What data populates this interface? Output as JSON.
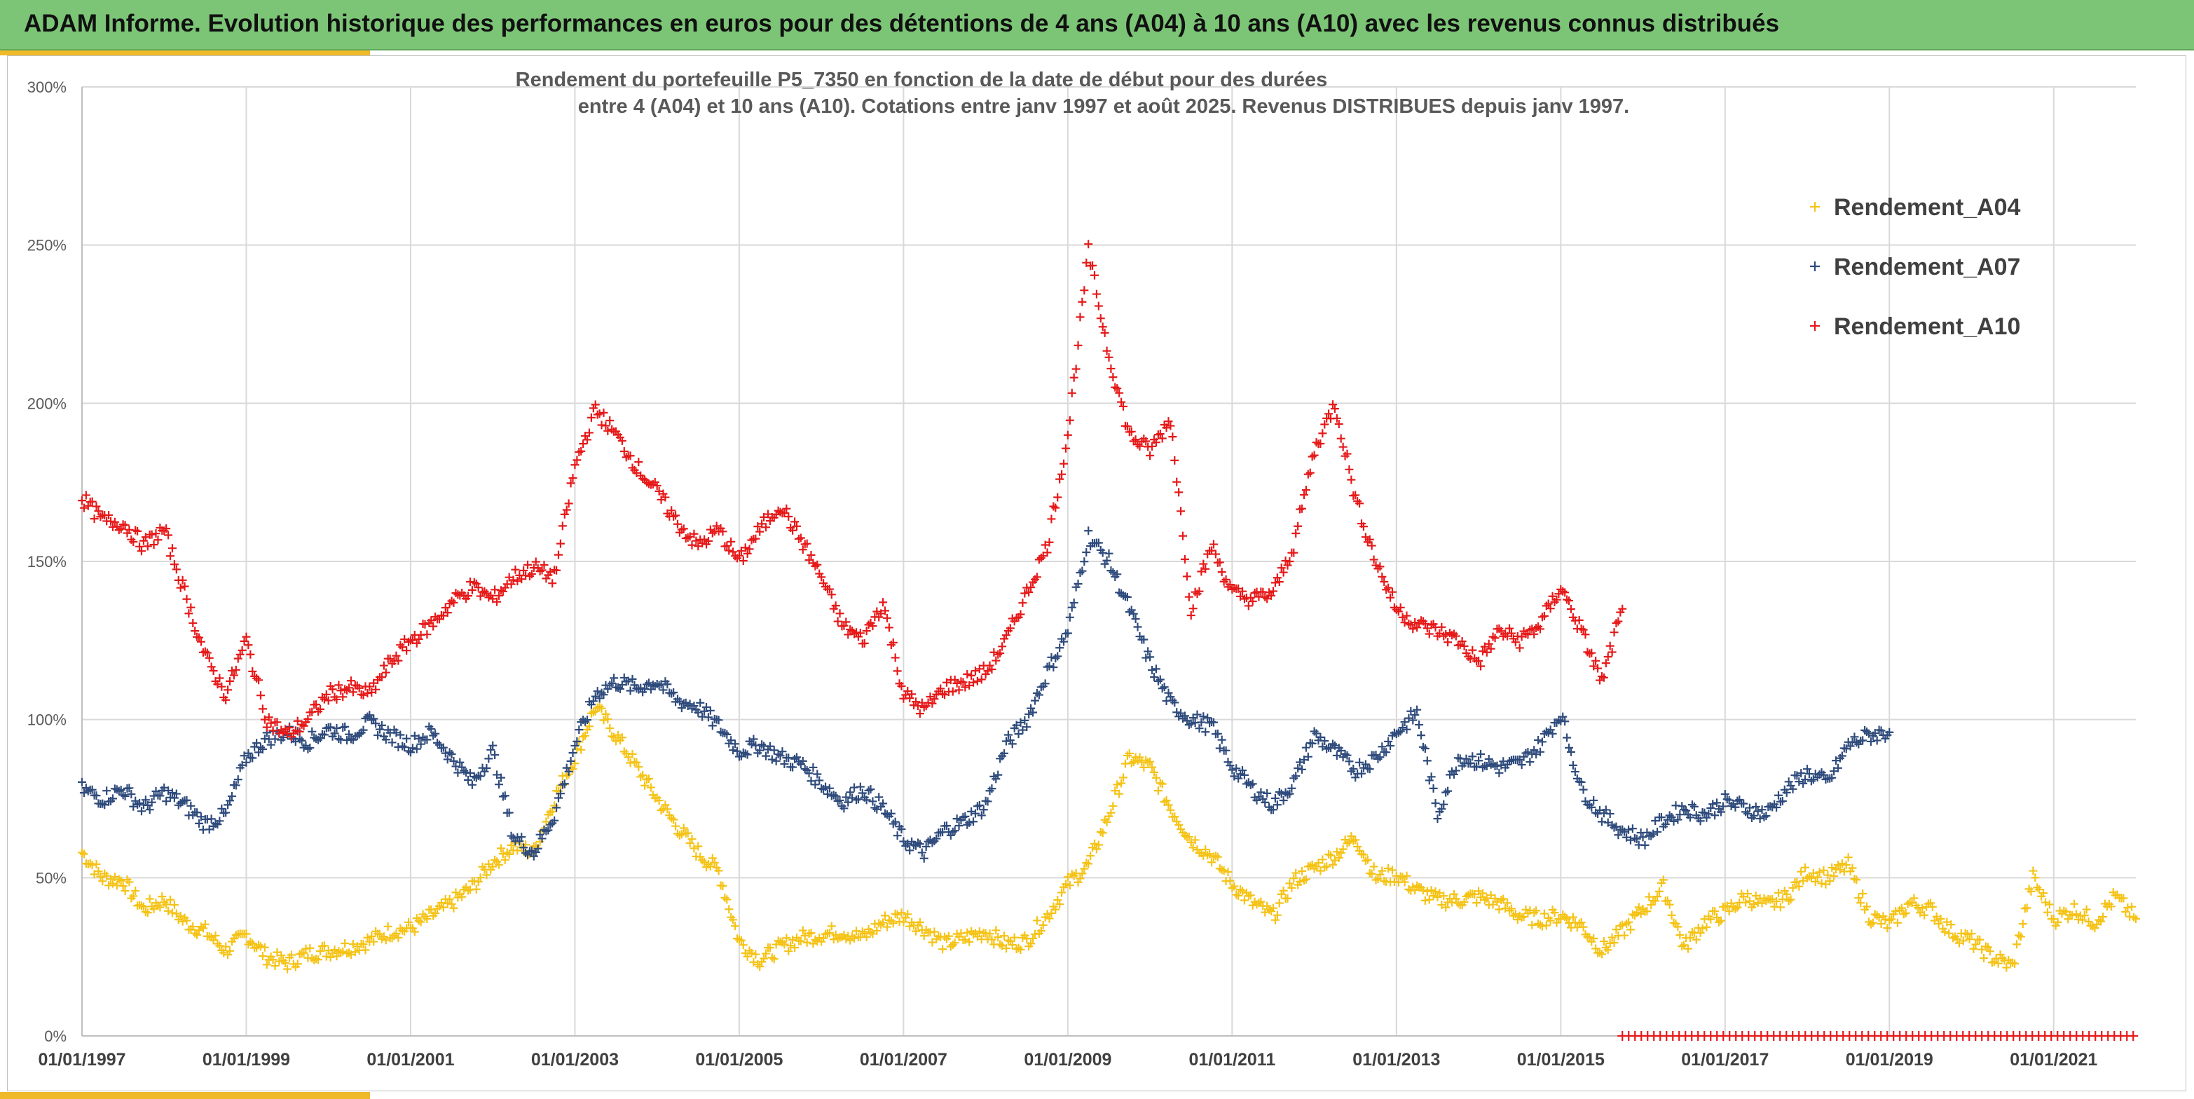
{
  "header": {
    "title": "ADAM Informe. Evolution historique des performances en euros pour des détentions de 4 ans (A04) à 10 ans (A10) avec les revenus connus distribués"
  },
  "colors": {
    "header_bg": "#7cc576",
    "accent": "#f0b929"
  },
  "chart_data": {
    "type": "scatter",
    "title_line1": "Rendement du portefeuille P5_7350 en fonction de la date de début pour des durées",
    "title_line2": "entre 4 (A04) et 10 ans (A10). Cotations entre janv 1997 et août 2025. Revenus DISTRIBUES depuis janv 1997.",
    "xlabel": "",
    "ylabel": "",
    "x_ticks": [
      "01/01/1997",
      "01/01/1999",
      "01/01/2001",
      "01/01/2003",
      "01/01/2005",
      "01/01/2007",
      "01/01/2009",
      "01/01/2011",
      "01/01/2013",
      "01/01/2015",
      "01/01/2017",
      "01/01/2019",
      "01/01/2021"
    ],
    "y_ticks": [
      "0%",
      "50%",
      "100%",
      "150%",
      "200%",
      "250%",
      "300%"
    ],
    "xlim": [
      1997.0,
      2022.0
    ],
    "ylim": [
      0,
      300
    ],
    "grid": true,
    "legend_position": "top-right",
    "marker": "+",
    "series": [
      {
        "name": "Rendement_A04",
        "color": "#f5c316",
        "points": [
          [
            1997.0,
            58
          ],
          [
            1997.25,
            50
          ],
          [
            1997.5,
            49
          ],
          [
            1997.75,
            40
          ],
          [
            1998.0,
            43
          ],
          [
            1998.25,
            36
          ],
          [
            1998.5,
            33
          ],
          [
            1998.75,
            27
          ],
          [
            1999.0,
            32
          ],
          [
            1999.25,
            25
          ],
          [
            1999.5,
            23
          ],
          [
            1999.75,
            26
          ],
          [
            2000.0,
            27
          ],
          [
            2000.25,
            28
          ],
          [
            2000.5,
            30
          ],
          [
            2000.75,
            33
          ],
          [
            2001.0,
            34
          ],
          [
            2001.25,
            38
          ],
          [
            2001.5,
            42
          ],
          [
            2001.75,
            47
          ],
          [
            2002.0,
            55
          ],
          [
            2002.25,
            60
          ],
          [
            2002.5,
            58
          ],
          [
            2002.75,
            75
          ],
          [
            2003.0,
            88
          ],
          [
            2003.25,
            104
          ],
          [
            2003.5,
            95
          ],
          [
            2003.75,
            85
          ],
          [
            2004.0,
            75
          ],
          [
            2004.25,
            66
          ],
          [
            2004.5,
            58
          ],
          [
            2004.75,
            52
          ],
          [
            2005.0,
            30
          ],
          [
            2005.25,
            24
          ],
          [
            2005.5,
            28
          ],
          [
            2005.75,
            31
          ],
          [
            2006.0,
            32
          ],
          [
            2006.25,
            33
          ],
          [
            2006.5,
            31
          ],
          [
            2006.75,
            36
          ],
          [
            2007.0,
            38
          ],
          [
            2007.25,
            34
          ],
          [
            2007.5,
            29
          ],
          [
            2007.75,
            31
          ],
          [
            2008.0,
            33
          ],
          [
            2008.25,
            29
          ],
          [
            2008.5,
            30
          ],
          [
            2008.75,
            38
          ],
          [
            2009.0,
            48
          ],
          [
            2009.25,
            54
          ],
          [
            2009.5,
            70
          ],
          [
            2009.75,
            88
          ],
          [
            2010.0,
            85
          ],
          [
            2010.25,
            72
          ],
          [
            2010.5,
            62
          ],
          [
            2010.75,
            57
          ],
          [
            2011.0,
            48
          ],
          [
            2011.25,
            42
          ],
          [
            2011.5,
            38
          ],
          [
            2011.75,
            49
          ],
          [
            2012.0,
            53
          ],
          [
            2012.25,
            57
          ],
          [
            2012.5,
            63
          ],
          [
            2012.75,
            50
          ],
          [
            2013.0,
            51
          ],
          [
            2013.25,
            46
          ],
          [
            2013.5,
            43
          ],
          [
            2013.75,
            43
          ],
          [
            2014.0,
            44
          ],
          [
            2014.25,
            42
          ],
          [
            2014.5,
            38
          ],
          [
            2014.75,
            37
          ],
          [
            2015.0,
            38
          ],
          [
            2015.25,
            35
          ],
          [
            2015.5,
            27
          ],
          [
            2015.75,
            33
          ],
          [
            2016.0,
            40
          ],
          [
            2016.25,
            47
          ],
          [
            2016.5,
            28
          ],
          [
            2016.75,
            36
          ],
          [
            2017.0,
            39
          ],
          [
            2017.25,
            44
          ],
          [
            2017.5,
            41
          ],
          [
            2017.75,
            44
          ],
          [
            2018.0,
            52
          ],
          [
            2018.25,
            50
          ],
          [
            2018.5,
            54
          ],
          [
            2018.75,
            38
          ],
          [
            2019.0,
            35
          ],
          [
            2019.25,
            42
          ],
          [
            2019.5,
            40
          ],
          [
            2019.75,
            33
          ],
          [
            2020.0,
            30
          ],
          [
            2020.25,
            25
          ],
          [
            2020.5,
            22
          ],
          [
            2020.75,
            50
          ],
          [
            2021.0,
            37
          ],
          [
            2021.25,
            40
          ],
          [
            2021.5,
            36
          ],
          [
            2021.75,
            44
          ],
          [
            2022.0,
            37
          ]
        ]
      },
      {
        "name": "Rendement_A07",
        "color": "#2f4b7c",
        "points": [
          [
            1997.0,
            78
          ],
          [
            1997.25,
            75
          ],
          [
            1997.5,
            78
          ],
          [
            1997.75,
            72
          ],
          [
            1998.0,
            77
          ],
          [
            1998.25,
            73
          ],
          [
            1998.5,
            67
          ],
          [
            1998.75,
            70
          ],
          [
            1999.0,
            88
          ],
          [
            1999.25,
            94
          ],
          [
            1999.5,
            96
          ],
          [
            1999.75,
            93
          ],
          [
            2000.0,
            97
          ],
          [
            2000.25,
            95
          ],
          [
            2000.5,
            99
          ],
          [
            2000.75,
            95
          ],
          [
            2001.0,
            92
          ],
          [
            2001.25,
            96
          ],
          [
            2001.5,
            88
          ],
          [
            2001.75,
            80
          ],
          [
            2002.0,
            90
          ],
          [
            2002.25,
            63
          ],
          [
            2002.5,
            58
          ],
          [
            2002.75,
            70
          ],
          [
            2003.0,
            92
          ],
          [
            2003.25,
            108
          ],
          [
            2003.5,
            112
          ],
          [
            2003.75,
            110
          ],
          [
            2004.0,
            112
          ],
          [
            2004.25,
            106
          ],
          [
            2004.5,
            104
          ],
          [
            2004.75,
            98
          ],
          [
            2005.0,
            90
          ],
          [
            2005.25,
            92
          ],
          [
            2005.5,
            88
          ],
          [
            2005.75,
            86
          ],
          [
            2006.0,
            80
          ],
          [
            2006.25,
            74
          ],
          [
            2006.5,
            78
          ],
          [
            2006.75,
            72
          ],
          [
            2007.0,
            62
          ],
          [
            2007.25,
            58
          ],
          [
            2007.5,
            65
          ],
          [
            2007.75,
            68
          ],
          [
            2008.0,
            73
          ],
          [
            2008.25,
            92
          ],
          [
            2008.5,
            100
          ],
          [
            2008.75,
            115
          ],
          [
            2009.0,
            128
          ],
          [
            2009.25,
            158
          ],
          [
            2009.5,
            150
          ],
          [
            2009.75,
            135
          ],
          [
            2010.0,
            118
          ],
          [
            2010.25,
            105
          ],
          [
            2010.5,
            100
          ],
          [
            2010.75,
            98
          ],
          [
            2011.0,
            85
          ],
          [
            2011.25,
            78
          ],
          [
            2011.5,
            73
          ],
          [
            2011.75,
            80
          ],
          [
            2012.0,
            95
          ],
          [
            2012.25,
            90
          ],
          [
            2012.5,
            84
          ],
          [
            2012.75,
            88
          ],
          [
            2013.0,
            96
          ],
          [
            2013.25,
            102
          ],
          [
            2013.5,
            70
          ],
          [
            2013.75,
            88
          ],
          [
            2014.0,
            87
          ],
          [
            2014.25,
            85
          ],
          [
            2014.5,
            86
          ],
          [
            2014.75,
            92
          ],
          [
            2015.0,
            102
          ],
          [
            2015.25,
            78
          ],
          [
            2015.5,
            70
          ],
          [
            2015.75,
            65
          ],
          [
            2016.0,
            62
          ],
          [
            2016.25,
            68
          ],
          [
            2016.5,
            72
          ],
          [
            2016.75,
            70
          ],
          [
            2017.0,
            74
          ],
          [
            2017.25,
            72
          ],
          [
            2017.5,
            70
          ],
          [
            2017.75,
            78
          ],
          [
            2018.0,
            83
          ],
          [
            2018.25,
            80
          ],
          [
            2018.5,
            92
          ],
          [
            2018.75,
            95
          ],
          [
            2019.0,
            96
          ]
        ]
      },
      {
        "name": "Rendement_A10",
        "color": "#e61919",
        "points": [
          [
            1997.0,
            170
          ],
          [
            1997.25,
            163
          ],
          [
            1997.5,
            162
          ],
          [
            1997.75,
            155
          ],
          [
            1998.0,
            160
          ],
          [
            1998.25,
            140
          ],
          [
            1998.5,
            120
          ],
          [
            1998.75,
            108
          ],
          [
            1999.0,
            125
          ],
          [
            1999.25,
            100
          ],
          [
            1999.5,
            95
          ],
          [
            1999.75,
            100
          ],
          [
            2000.0,
            108
          ],
          [
            2000.25,
            110
          ],
          [
            2000.5,
            108
          ],
          [
            2000.75,
            118
          ],
          [
            2001.0,
            125
          ],
          [
            2001.25,
            130
          ],
          [
            2001.5,
            137
          ],
          [
            2001.75,
            142
          ],
          [
            2002.0,
            138
          ],
          [
            2002.25,
            145
          ],
          [
            2002.5,
            148
          ],
          [
            2002.75,
            145
          ],
          [
            2003.0,
            180
          ],
          [
            2003.25,
            198
          ],
          [
            2003.5,
            190
          ],
          [
            2003.75,
            180
          ],
          [
            2004.0,
            172
          ],
          [
            2004.25,
            162
          ],
          [
            2004.5,
            155
          ],
          [
            2004.75,
            160
          ],
          [
            2005.0,
            150
          ],
          [
            2005.25,
            160
          ],
          [
            2005.5,
            168
          ],
          [
            2005.75,
            157
          ],
          [
            2006.0,
            145
          ],
          [
            2006.25,
            130
          ],
          [
            2006.5,
            125
          ],
          [
            2006.75,
            137
          ],
          [
            2007.0,
            108
          ],
          [
            2007.25,
            103
          ],
          [
            2007.5,
            110
          ],
          [
            2007.75,
            112
          ],
          [
            2008.0,
            115
          ],
          [
            2008.25,
            125
          ],
          [
            2008.5,
            140
          ],
          [
            2008.75,
            155
          ],
          [
            2009.0,
            190
          ],
          [
            2009.25,
            248
          ],
          [
            2009.5,
            215
          ],
          [
            2009.75,
            190
          ],
          [
            2010.0,
            185
          ],
          [
            2010.25,
            195
          ],
          [
            2010.5,
            135
          ],
          [
            2010.75,
            155
          ],
          [
            2011.0,
            140
          ],
          [
            2011.25,
            138
          ],
          [
            2011.5,
            140
          ],
          [
            2011.75,
            155
          ],
          [
            2012.0,
            185
          ],
          [
            2012.25,
            200
          ],
          [
            2012.5,
            170
          ],
          [
            2012.75,
            150
          ],
          [
            2013.0,
            135
          ],
          [
            2013.25,
            130
          ],
          [
            2013.5,
            128
          ],
          [
            2013.75,
            125
          ],
          [
            2014.0,
            118
          ],
          [
            2014.25,
            128
          ],
          [
            2014.5,
            125
          ],
          [
            2014.75,
            130
          ],
          [
            2015.0,
            142
          ],
          [
            2015.25,
            128
          ],
          [
            2015.5,
            112
          ],
          [
            2015.75,
            135
          ]
        ]
      },
      {
        "name": "",
        "color": "#e61919",
        "points": [
          [
            2015.75,
            0
          ],
          [
            2022.0,
            0
          ]
        ],
        "dense_baseline": true
      }
    ]
  }
}
